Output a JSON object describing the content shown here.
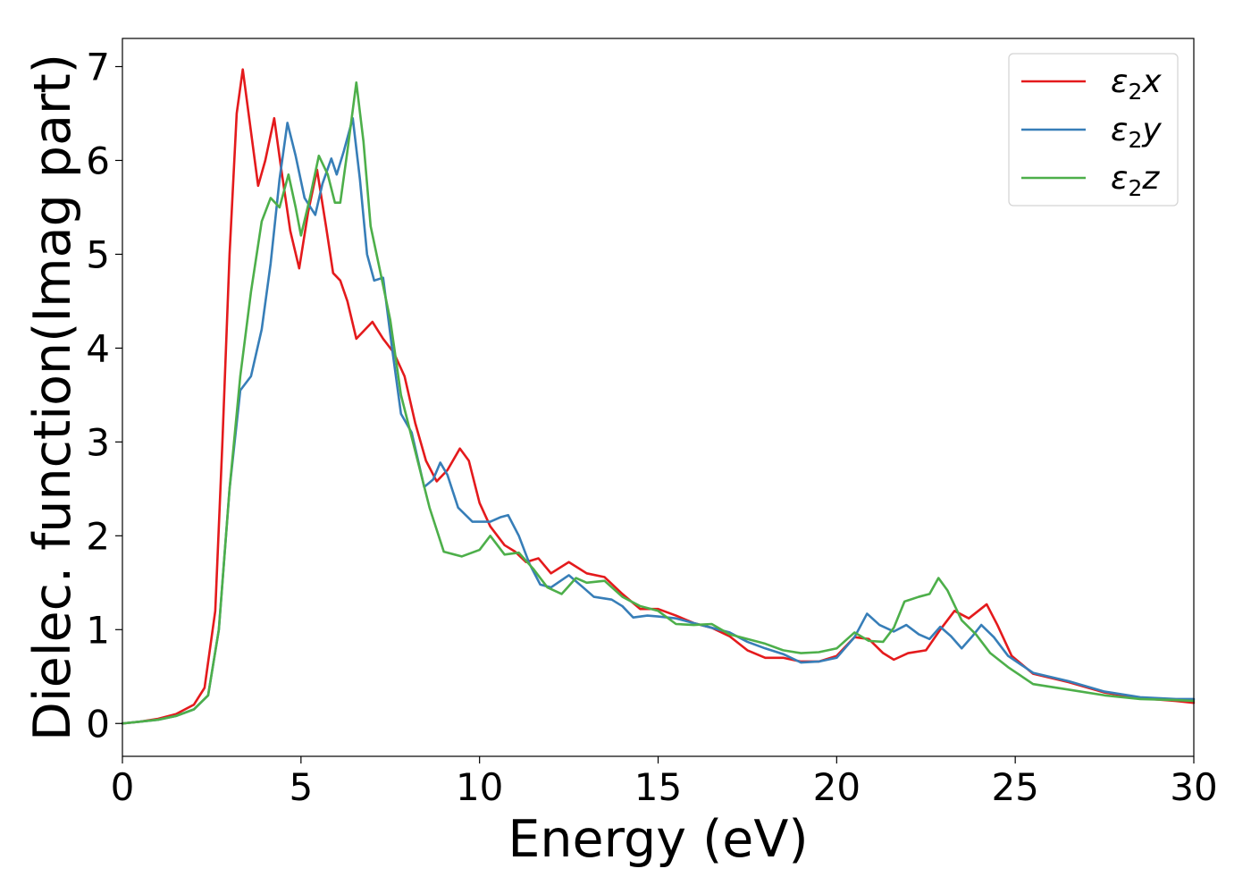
{
  "chart_data": {
    "type": "line",
    "title": "",
    "xlabel": "Energy (eV)",
    "ylabel": "Dielec. function(Imag part)",
    "xlim": [
      0,
      30
    ],
    "ylim": [
      -0.35,
      7.3
    ],
    "xticks": [
      0,
      5,
      10,
      15,
      20,
      25,
      30
    ],
    "xtick_labels": [
      "0",
      "5",
      "10",
      "15",
      "20",
      "25",
      "30"
    ],
    "yticks": [
      0,
      1,
      2,
      3,
      4,
      5,
      6,
      7
    ],
    "ytick_labels": [
      "0",
      "1",
      "2",
      "3",
      "4",
      "5",
      "6",
      "7"
    ],
    "grid": false,
    "legend_position": "top-right",
    "series": [
      {
        "name": "ε2x",
        "legend_base": "ε",
        "legend_sub": "2",
        "legend_suffix": "x",
        "color": "#e41a1c",
        "points": [
          [
            0,
            0
          ],
          [
            0.5,
            0.02
          ],
          [
            1,
            0.05
          ],
          [
            1.5,
            0.1
          ],
          [
            2,
            0.2
          ],
          [
            2.3,
            0.38
          ],
          [
            2.6,
            1.2
          ],
          [
            2.8,
            3.0
          ],
          [
            3.0,
            5.0
          ],
          [
            3.2,
            6.5
          ],
          [
            3.37,
            6.97
          ],
          [
            3.55,
            6.45
          ],
          [
            3.8,
            5.73
          ],
          [
            4.0,
            6.0
          ],
          [
            4.25,
            6.45
          ],
          [
            4.45,
            5.9
          ],
          [
            4.7,
            5.25
          ],
          [
            4.95,
            4.85
          ],
          [
            5.2,
            5.45
          ],
          [
            5.45,
            5.9
          ],
          [
            5.7,
            5.3
          ],
          [
            5.9,
            4.8
          ],
          [
            6.1,
            4.72
          ],
          [
            6.3,
            4.5
          ],
          [
            6.55,
            4.1
          ],
          [
            6.8,
            4.2
          ],
          [
            7.0,
            4.28
          ],
          [
            7.3,
            4.1
          ],
          [
            7.6,
            3.95
          ],
          [
            7.9,
            3.7
          ],
          [
            8.2,
            3.2
          ],
          [
            8.5,
            2.8
          ],
          [
            8.8,
            2.58
          ],
          [
            9.1,
            2.7
          ],
          [
            9.45,
            2.93
          ],
          [
            9.7,
            2.8
          ],
          [
            10.0,
            2.35
          ],
          [
            10.3,
            2.1
          ],
          [
            10.7,
            1.9
          ],
          [
            11.0,
            1.83
          ],
          [
            11.3,
            1.72
          ],
          [
            11.65,
            1.76
          ],
          [
            12.0,
            1.6
          ],
          [
            12.5,
            1.72
          ],
          [
            13.0,
            1.6
          ],
          [
            13.5,
            1.56
          ],
          [
            14.0,
            1.38
          ],
          [
            14.5,
            1.22
          ],
          [
            15.0,
            1.22
          ],
          [
            15.5,
            1.15
          ],
          [
            16.0,
            1.07
          ],
          [
            16.5,
            1.02
          ],
          [
            17.0,
            0.93
          ],
          [
            17.5,
            0.78
          ],
          [
            18.0,
            0.7
          ],
          [
            18.5,
            0.7
          ],
          [
            19.0,
            0.66
          ],
          [
            19.5,
            0.66
          ],
          [
            20.0,
            0.72
          ],
          [
            20.5,
            0.92
          ],
          [
            20.9,
            0.9
          ],
          [
            21.3,
            0.75
          ],
          [
            21.6,
            0.68
          ],
          [
            22.0,
            0.75
          ],
          [
            22.5,
            0.78
          ],
          [
            22.9,
            1.0
          ],
          [
            23.3,
            1.2
          ],
          [
            23.7,
            1.12
          ],
          [
            24.2,
            1.27
          ],
          [
            24.5,
            1.05
          ],
          [
            24.9,
            0.72
          ],
          [
            25.5,
            0.53
          ],
          [
            26.5,
            0.44
          ],
          [
            27.5,
            0.33
          ],
          [
            28.5,
            0.27
          ],
          [
            29.5,
            0.24
          ],
          [
            30.0,
            0.22
          ]
        ]
      },
      {
        "name": "ε2y",
        "legend_base": "ε",
        "legend_sub": "2",
        "legend_suffix": "y",
        "color": "#377eb8",
        "points": [
          [
            0,
            0
          ],
          [
            0.5,
            0.02
          ],
          [
            1,
            0.04
          ],
          [
            1.5,
            0.08
          ],
          [
            2,
            0.15
          ],
          [
            2.4,
            0.3
          ],
          [
            2.7,
            1.0
          ],
          [
            3.0,
            2.5
          ],
          [
            3.3,
            3.55
          ],
          [
            3.6,
            3.7
          ],
          [
            3.9,
            4.2
          ],
          [
            4.15,
            4.9
          ],
          [
            4.4,
            5.8
          ],
          [
            4.62,
            6.4
          ],
          [
            4.85,
            6.05
          ],
          [
            5.1,
            5.6
          ],
          [
            5.4,
            5.42
          ],
          [
            5.6,
            5.75
          ],
          [
            5.85,
            6.02
          ],
          [
            6.0,
            5.85
          ],
          [
            6.2,
            6.1
          ],
          [
            6.45,
            6.45
          ],
          [
            6.65,
            5.8
          ],
          [
            6.85,
            5.0
          ],
          [
            7.05,
            4.72
          ],
          [
            7.3,
            4.75
          ],
          [
            7.55,
            4.0
          ],
          [
            7.8,
            3.3
          ],
          [
            8.1,
            3.1
          ],
          [
            8.45,
            2.52
          ],
          [
            8.7,
            2.6
          ],
          [
            8.9,
            2.78
          ],
          [
            9.1,
            2.65
          ],
          [
            9.4,
            2.3
          ],
          [
            9.8,
            2.15
          ],
          [
            10.3,
            2.15
          ],
          [
            10.6,
            2.2
          ],
          [
            10.8,
            2.22
          ],
          [
            11.1,
            2.0
          ],
          [
            11.4,
            1.7
          ],
          [
            11.7,
            1.48
          ],
          [
            12.0,
            1.45
          ],
          [
            12.5,
            1.58
          ],
          [
            12.9,
            1.45
          ],
          [
            13.2,
            1.35
          ],
          [
            13.7,
            1.32
          ],
          [
            14.0,
            1.25
          ],
          [
            14.3,
            1.13
          ],
          [
            14.7,
            1.15
          ],
          [
            15.0,
            1.14
          ],
          [
            15.5,
            1.12
          ],
          [
            16.0,
            1.07
          ],
          [
            16.5,
            1.02
          ],
          [
            17.0,
            0.97
          ],
          [
            17.5,
            0.87
          ],
          [
            18.0,
            0.8
          ],
          [
            18.5,
            0.74
          ],
          [
            19.0,
            0.65
          ],
          [
            19.5,
            0.66
          ],
          [
            20.0,
            0.7
          ],
          [
            20.5,
            0.92
          ],
          [
            20.85,
            1.17
          ],
          [
            21.2,
            1.05
          ],
          [
            21.6,
            0.98
          ],
          [
            21.95,
            1.05
          ],
          [
            22.3,
            0.95
          ],
          [
            22.6,
            0.9
          ],
          [
            22.9,
            1.03
          ],
          [
            23.2,
            0.93
          ],
          [
            23.5,
            0.8
          ],
          [
            23.8,
            0.93
          ],
          [
            24.05,
            1.05
          ],
          [
            24.4,
            0.92
          ],
          [
            24.8,
            0.72
          ],
          [
            25.5,
            0.54
          ],
          [
            26.5,
            0.45
          ],
          [
            27.5,
            0.34
          ],
          [
            28.5,
            0.28
          ],
          [
            29.5,
            0.26
          ],
          [
            30.0,
            0.26
          ]
        ]
      },
      {
        "name": "ε2z",
        "legend_base": "ε",
        "legend_sub": "2",
        "legend_suffix": "z",
        "color": "#4daf4a",
        "points": [
          [
            0,
            0
          ],
          [
            0.5,
            0.02
          ],
          [
            1,
            0.04
          ],
          [
            1.5,
            0.08
          ],
          [
            2,
            0.15
          ],
          [
            2.4,
            0.3
          ],
          [
            2.7,
            1.0
          ],
          [
            3.0,
            2.5
          ],
          [
            3.3,
            3.7
          ],
          [
            3.6,
            4.6
          ],
          [
            3.9,
            5.35
          ],
          [
            4.15,
            5.6
          ],
          [
            4.4,
            5.5
          ],
          [
            4.65,
            5.85
          ],
          [
            4.85,
            5.5
          ],
          [
            5.0,
            5.2
          ],
          [
            5.25,
            5.6
          ],
          [
            5.5,
            6.05
          ],
          [
            5.75,
            5.85
          ],
          [
            5.95,
            5.55
          ],
          [
            6.1,
            5.55
          ],
          [
            6.3,
            6.1
          ],
          [
            6.55,
            6.83
          ],
          [
            6.75,
            6.2
          ],
          [
            6.95,
            5.3
          ],
          [
            7.2,
            4.85
          ],
          [
            7.5,
            4.3
          ],
          [
            7.8,
            3.5
          ],
          [
            8.2,
            2.9
          ],
          [
            8.6,
            2.3
          ],
          [
            9.0,
            1.83
          ],
          [
            9.5,
            1.78
          ],
          [
            10.0,
            1.85
          ],
          [
            10.3,
            2.0
          ],
          [
            10.7,
            1.8
          ],
          [
            11.1,
            1.82
          ],
          [
            11.5,
            1.65
          ],
          [
            11.9,
            1.45
          ],
          [
            12.3,
            1.38
          ],
          [
            12.7,
            1.55
          ],
          [
            13.0,
            1.5
          ],
          [
            13.5,
            1.52
          ],
          [
            14.0,
            1.35
          ],
          [
            14.5,
            1.25
          ],
          [
            15.0,
            1.2
          ],
          [
            15.5,
            1.06
          ],
          [
            16.0,
            1.05
          ],
          [
            16.5,
            1.06
          ],
          [
            17.0,
            0.95
          ],
          [
            17.5,
            0.9
          ],
          [
            18.0,
            0.85
          ],
          [
            18.5,
            0.78
          ],
          [
            19.0,
            0.75
          ],
          [
            19.5,
            0.76
          ],
          [
            20.0,
            0.8
          ],
          [
            20.5,
            0.97
          ],
          [
            20.9,
            0.88
          ],
          [
            21.3,
            0.87
          ],
          [
            21.6,
            1.02
          ],
          [
            21.9,
            1.3
          ],
          [
            22.3,
            1.35
          ],
          [
            22.6,
            1.38
          ],
          [
            22.85,
            1.55
          ],
          [
            23.1,
            1.42
          ],
          [
            23.5,
            1.1
          ],
          [
            23.9,
            0.95
          ],
          [
            24.3,
            0.75
          ],
          [
            24.8,
            0.6
          ],
          [
            25.5,
            0.42
          ],
          [
            26.5,
            0.36
          ],
          [
            27.5,
            0.3
          ],
          [
            28.5,
            0.26
          ],
          [
            29.5,
            0.25
          ],
          [
            30.0,
            0.24
          ]
        ]
      }
    ]
  }
}
